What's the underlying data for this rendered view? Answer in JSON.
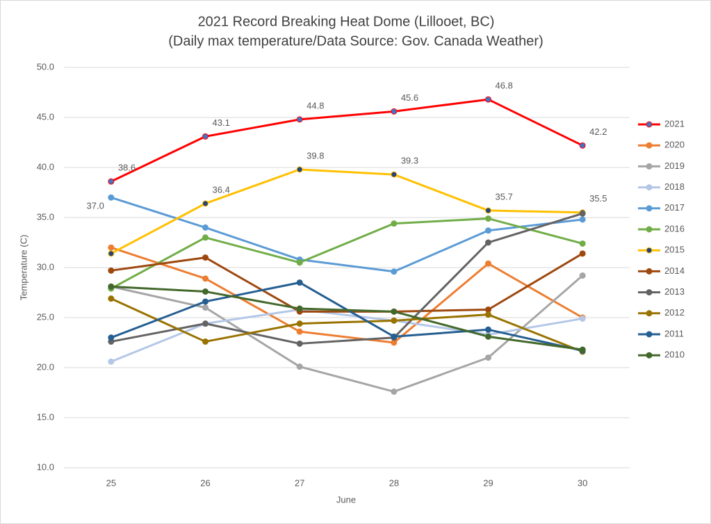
{
  "chart_data": {
    "type": "line",
    "title": "2021 Record Breaking Heat Dome (Lillooet, BC)",
    "subtitle": "(Daily max temperature/Data Source: Gov. Canada Weather)",
    "x_label": "June",
    "y_label": "Temperature  (C)",
    "categories": [
      "25",
      "26",
      "27",
      "28",
      "29",
      "30"
    ],
    "ylim": [
      10,
      50
    ],
    "yticks": [
      {
        "value": 10,
        "label": "10.0"
      },
      {
        "value": 15,
        "label": "15.0"
      },
      {
        "value": 20,
        "label": "20.0"
      },
      {
        "value": 25,
        "label": "25.0"
      },
      {
        "value": 30,
        "label": "30.0"
      },
      {
        "value": 35,
        "label": "35.0"
      },
      {
        "value": 40,
        "label": "40.0"
      },
      {
        "value": 45,
        "label": "45.0"
      },
      {
        "value": 50,
        "label": "50.0"
      }
    ],
    "grid": true,
    "legend": "right",
    "series": [
      {
        "name": "2021",
        "color": "#ff0000",
        "marker_color": "#4472c4",
        "values": [
          38.6,
          43.1,
          44.8,
          45.6,
          46.8,
          42.2
        ],
        "value_labels": [
          "38.6",
          "43.1",
          "44.8",
          "45.6",
          "46.8",
          "42.2"
        ]
      },
      {
        "name": "2020",
        "color": "#ed7d31",
        "values": [
          32.0,
          28.9,
          23.6,
          22.5,
          30.4,
          25.0
        ]
      },
      {
        "name": "2019",
        "color": "#a5a5a5",
        "values": [
          28.1,
          26.0,
          20.1,
          17.6,
          21.0,
          29.2
        ]
      },
      {
        "name": "2018",
        "color": "#b4c7e7",
        "values": [
          20.6,
          24.4,
          25.8,
          24.7,
          23.3,
          24.9
        ]
      },
      {
        "name": "2017",
        "color": "#5b9bd5",
        "values": [
          37.0,
          34.0,
          30.8,
          29.6,
          33.7,
          34.8
        ],
        "value_labels": [
          "37.0",
          null,
          null,
          null,
          null,
          null
        ],
        "label_side": "below"
      },
      {
        "name": "2016",
        "color": "#70ad47",
        "values": [
          27.9,
          33.0,
          30.5,
          34.4,
          34.9,
          32.4
        ]
      },
      {
        "name": "2015",
        "color": "#ffc000",
        "marker_color": "#264478",
        "values": [
          31.4,
          36.4,
          39.8,
          39.3,
          35.7,
          35.5
        ],
        "value_labels": [
          null,
          "36.4",
          "39.8",
          "39.3",
          "35.7",
          "35.5"
        ]
      },
      {
        "name": "2014",
        "color": "#9e480e",
        "values": [
          29.7,
          31.0,
          25.6,
          25.6,
          25.8,
          31.4
        ]
      },
      {
        "name": "2013",
        "color": "#636363",
        "values": [
          22.6,
          24.4,
          22.4,
          23.0,
          32.5,
          35.4
        ]
      },
      {
        "name": "2012",
        "color": "#997300",
        "values": [
          26.9,
          22.6,
          24.4,
          24.7,
          25.3,
          21.6
        ]
      },
      {
        "name": "2011",
        "color": "#255e91",
        "values": [
          23.0,
          26.6,
          28.5,
          23.1,
          23.8,
          21.7
        ]
      },
      {
        "name": "2010",
        "color": "#43682b",
        "values": [
          28.1,
          27.6,
          25.9,
          25.6,
          23.1,
          21.8
        ]
      }
    ]
  }
}
